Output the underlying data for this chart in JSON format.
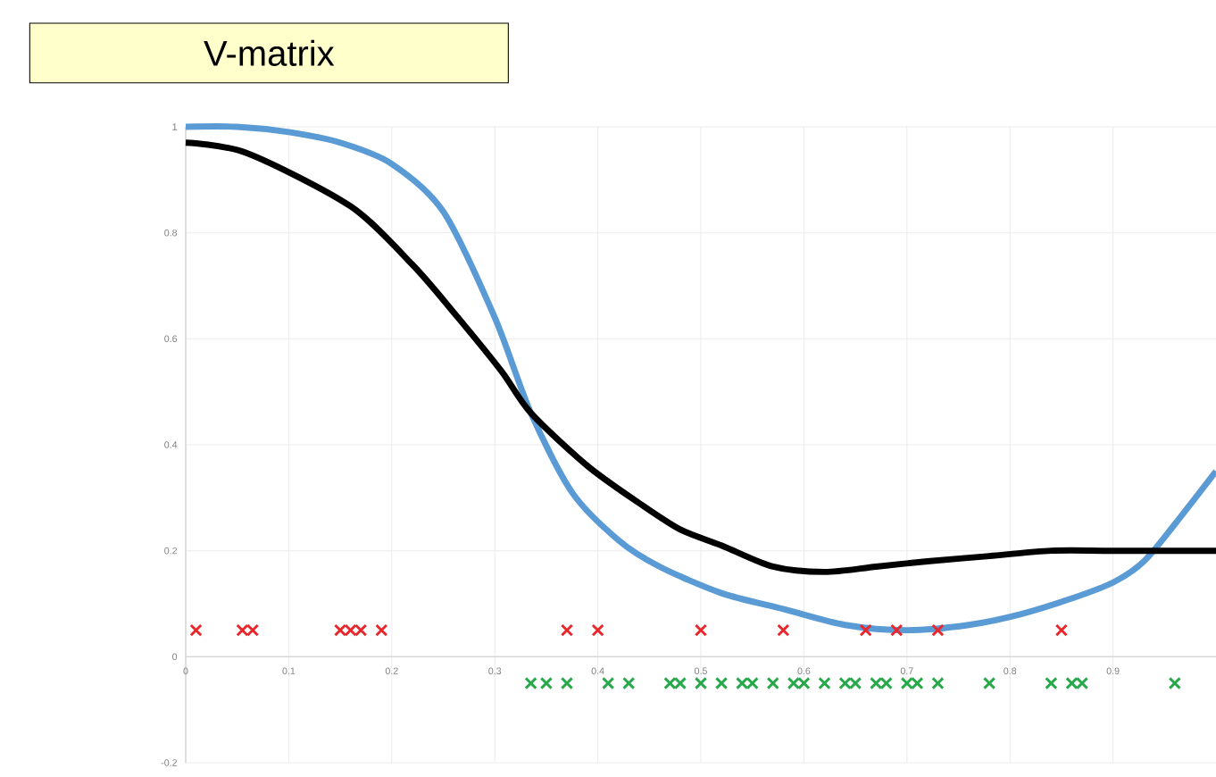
{
  "chart_data": {
    "type": "line",
    "title": "V-matrix",
    "xlim": [
      0,
      1
    ],
    "ylim": [
      -0.2,
      1
    ],
    "xticks": [
      0,
      0.1,
      0.2,
      0.3,
      0.4,
      0.5,
      0.6,
      0.7,
      0.8,
      0.9
    ],
    "yticks": [
      -0.2,
      0,
      0.2,
      0.4,
      0.6,
      0.8,
      1
    ],
    "grid": true,
    "series": [
      {
        "color": "#5b9bd5",
        "x": [
          0,
          0.05,
          0.1,
          0.15,
          0.2,
          0.25,
          0.3,
          0.335,
          0.375,
          0.42,
          0.46,
          0.52,
          0.58,
          0.64,
          0.7,
          0.76,
          0.81,
          0.86,
          0.9,
          0.93,
          0.96,
          1.0
        ],
        "values": [
          1.0,
          1.0,
          0.99,
          0.97,
          0.93,
          0.84,
          0.64,
          0.46,
          0.31,
          0.22,
          0.17,
          0.12,
          0.09,
          0.06,
          0.05,
          0.06,
          0.08,
          0.11,
          0.14,
          0.18,
          0.25,
          0.35
        ]
      },
      {
        "color": "#000000",
        "x": [
          0,
          0.06,
          0.16,
          0.22,
          0.26,
          0.306,
          0.335,
          0.39,
          0.44,
          0.48,
          0.52,
          0.57,
          0.62,
          0.67,
          0.72,
          0.78,
          0.84,
          0.9,
          1.0
        ],
        "values": [
          0.97,
          0.95,
          0.85,
          0.74,
          0.65,
          0.54,
          0.46,
          0.36,
          0.29,
          0.24,
          0.21,
          0.17,
          0.16,
          0.17,
          0.18,
          0.19,
          0.2,
          0.2,
          0.2
        ]
      },
      {
        "type": "scatter",
        "marker": "cross",
        "color": "#e8262b",
        "x": [
          0.01,
          0.055,
          0.065,
          0.15,
          0.16,
          0.17,
          0.19,
          0.37,
          0.4,
          0.5,
          0.58,
          0.66,
          0.69,
          0.73,
          0.85
        ],
        "values": [
          0.05,
          0.05,
          0.05,
          0.05,
          0.05,
          0.05,
          0.05,
          0.05,
          0.05,
          0.05,
          0.05,
          0.05,
          0.05,
          0.05,
          0.05
        ]
      },
      {
        "type": "scatter",
        "marker": "cross",
        "color": "#27a84a",
        "x": [
          0.335,
          0.35,
          0.37,
          0.41,
          0.43,
          0.47,
          0.48,
          0.5,
          0.52,
          0.54,
          0.55,
          0.57,
          0.59,
          0.6,
          0.62,
          0.64,
          0.65,
          0.67,
          0.68,
          0.7,
          0.71,
          0.73,
          0.78,
          0.84,
          0.86,
          0.87,
          0.96
        ],
        "values": [
          -0.05,
          -0.05,
          -0.05,
          -0.05,
          -0.05,
          -0.05,
          -0.05,
          -0.05,
          -0.05,
          -0.05,
          -0.05,
          -0.05,
          -0.05,
          -0.05,
          -0.05,
          -0.05,
          -0.05,
          -0.05,
          -0.05,
          -0.05,
          -0.05,
          -0.05,
          -0.05,
          -0.05,
          -0.05,
          -0.05,
          -0.05
        ]
      }
    ]
  }
}
